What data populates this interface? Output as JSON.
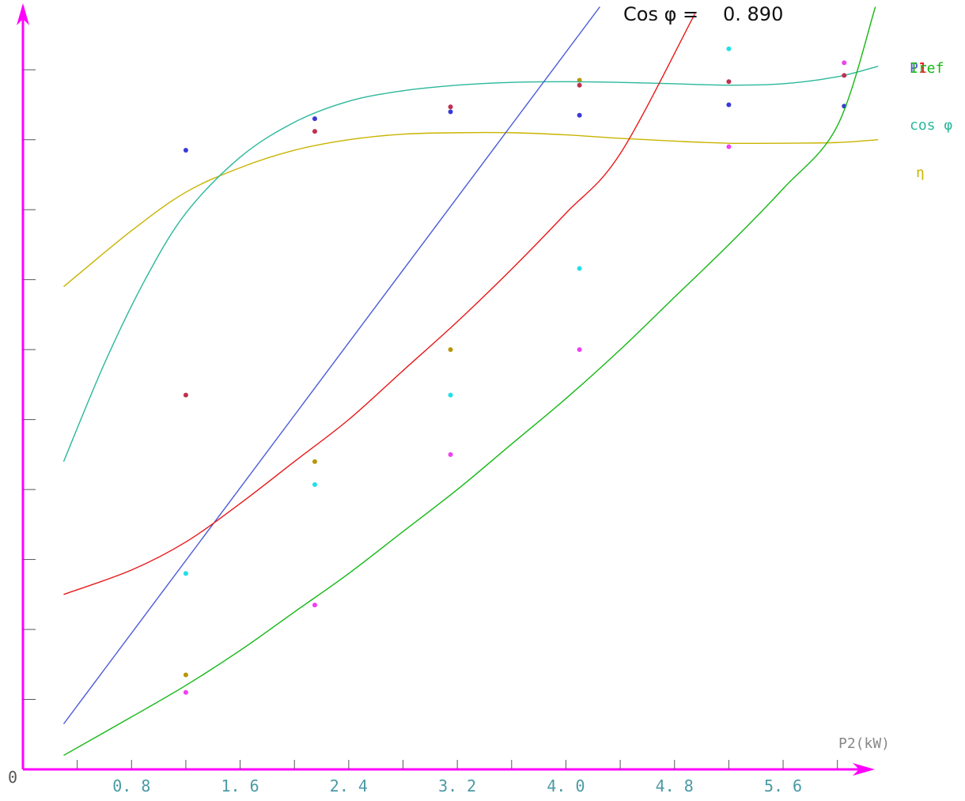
{
  "header": {
    "label": "Cos φ =",
    "value": "0. 890"
  },
  "chart_data": {
    "type": "line",
    "xlabel": "P2(kW)",
    "origin_label": "0",
    "xlim": [
      0,
      6.2
    ],
    "ylim": [
      0,
      10.5
    ],
    "x_ticks": [
      0.4,
      0.8,
      1.2,
      1.6,
      2.0,
      2.4,
      2.8,
      3.2,
      3.6,
      4.0,
      4.4,
      4.8,
      5.2,
      5.6,
      6.0
    ],
    "x_tick_labels": [
      {
        "x": 0.8,
        "label": "0. 8"
      },
      {
        "x": 1.6,
        "label": "1. 6"
      },
      {
        "x": 2.4,
        "label": "2. 4"
      },
      {
        "x": 3.2,
        "label": "3. 2"
      },
      {
        "x": 4.0,
        "label": "4. 0"
      },
      {
        "x": 4.8,
        "label": "4. 8"
      },
      {
        "x": 5.6,
        "label": "5. 6"
      }
    ],
    "y_ticks": [
      1,
      2,
      3,
      4,
      5,
      6,
      7,
      8,
      9,
      10
    ],
    "axis_color": "#ff00ff",
    "series": [
      {
        "name": "η",
        "color": "#c8b400",
        "point_color": "#b8960a",
        "curve": [
          [
            0.3,
            6.9
          ],
          [
            0.8,
            7.7
          ],
          [
            1.2,
            8.25
          ],
          [
            1.6,
            8.6
          ],
          [
            2.0,
            8.85
          ],
          [
            2.4,
            9.0
          ],
          [
            2.8,
            9.08
          ],
          [
            3.2,
            9.1
          ],
          [
            3.6,
            9.1
          ],
          [
            4.0,
            9.07
          ],
          [
            4.4,
            9.02
          ],
          [
            4.8,
            8.98
          ],
          [
            5.2,
            8.95
          ],
          [
            5.6,
            8.95
          ],
          [
            6.0,
            8.96
          ],
          [
            6.3,
            9.0
          ]
        ],
        "points": [
          [
            1.2,
            1.35
          ],
          [
            2.15,
            4.4
          ],
          [
            3.15,
            6.0
          ],
          [
            4.1,
            9.85
          ]
        ]
      },
      {
        "name": "cos φ",
        "color": "#2ab89a",
        "point_color": "#c03050",
        "curve": [
          [
            0.3,
            4.4
          ],
          [
            0.6,
            5.8
          ],
          [
            0.9,
            7.0
          ],
          [
            1.2,
            7.95
          ],
          [
            1.6,
            8.75
          ],
          [
            2.0,
            9.25
          ],
          [
            2.4,
            9.55
          ],
          [
            2.8,
            9.7
          ],
          [
            3.2,
            9.78
          ],
          [
            3.6,
            9.82
          ],
          [
            4.0,
            9.83
          ],
          [
            4.4,
            9.82
          ],
          [
            4.8,
            9.8
          ],
          [
            5.2,
            9.78
          ],
          [
            5.6,
            9.8
          ],
          [
            6.0,
            9.9
          ],
          [
            6.3,
            10.05
          ]
        ],
        "points": [
          [
            1.2,
            5.35
          ],
          [
            2.15,
            9.12
          ],
          [
            3.15,
            9.47
          ],
          [
            4.1,
            9.78
          ],
          [
            5.2,
            9.83
          ],
          [
            6.05,
            9.92
          ]
        ]
      },
      {
        "name": "P1",
        "color": "#4a5ad8",
        "point_color": "#3a3ad8",
        "curve": [
          [
            0.3,
            0.65
          ],
          [
            4.25,
            10.9
          ]
        ],
        "points": [
          [
            1.2,
            8.85
          ],
          [
            2.15,
            9.3
          ],
          [
            3.15,
            9.4
          ],
          [
            4.1,
            9.35
          ],
          [
            5.2,
            9.5
          ],
          [
            6.05,
            9.48
          ]
        ]
      },
      {
        "name": "I1",
        "color": "#e81818",
        "point_color": "#22e0e8",
        "curve": [
          [
            0.3,
            2.5
          ],
          [
            0.8,
            2.85
          ],
          [
            1.2,
            3.25
          ],
          [
            1.6,
            3.8
          ],
          [
            2.0,
            4.4
          ],
          [
            2.4,
            5.0
          ],
          [
            2.8,
            5.7
          ],
          [
            3.2,
            6.4
          ],
          [
            3.6,
            7.15
          ],
          [
            4.0,
            7.95
          ],
          [
            4.4,
            8.8
          ],
          [
            4.95,
            10.8
          ]
        ],
        "points": [
          [
            1.2,
            2.8
          ],
          [
            2.15,
            4.07
          ],
          [
            3.15,
            5.35
          ],
          [
            4.1,
            7.16
          ],
          [
            5.2,
            10.3
          ]
        ]
      },
      {
        "name": "Iref",
        "color": "#14b814",
        "point_color": "#f040f0",
        "curve": [
          [
            0.3,
            0.2
          ],
          [
            0.8,
            0.75
          ],
          [
            1.2,
            1.2
          ],
          [
            1.6,
            1.7
          ],
          [
            2.0,
            2.25
          ],
          [
            2.4,
            2.8
          ],
          [
            2.8,
            3.4
          ],
          [
            3.2,
            4.0
          ],
          [
            3.6,
            4.65
          ],
          [
            4.0,
            5.3
          ],
          [
            4.4,
            6.0
          ],
          [
            4.8,
            6.75
          ],
          [
            5.2,
            7.5
          ],
          [
            5.6,
            8.3
          ],
          [
            6.0,
            9.2
          ],
          [
            6.28,
            10.9
          ]
        ],
        "points": [
          [
            1.2,
            1.1
          ],
          [
            2.15,
            2.35
          ],
          [
            3.15,
            4.5
          ],
          [
            4.1,
            6.0
          ],
          [
            5.2,
            8.9
          ],
          [
            6.05,
            10.1
          ]
        ]
      }
    ]
  }
}
